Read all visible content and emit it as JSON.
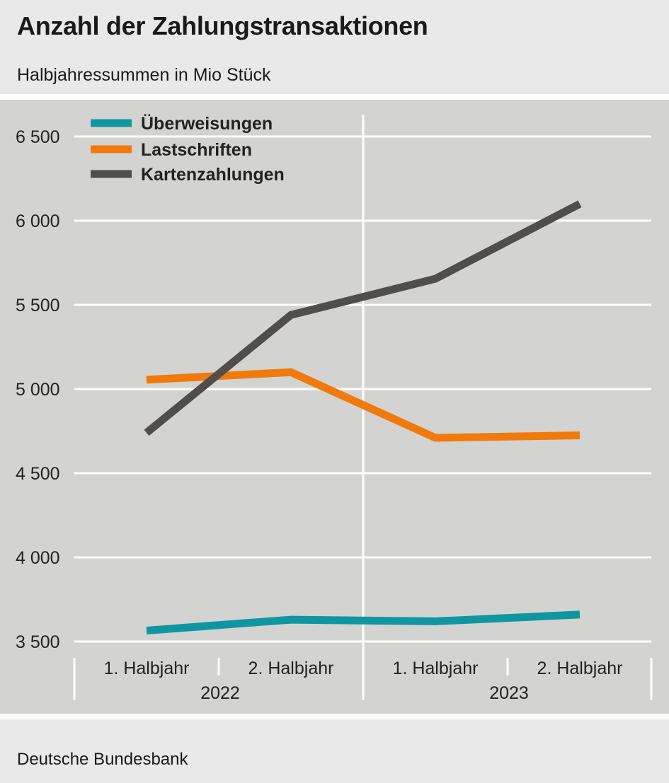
{
  "title": "Anzahl der Zahlungstransaktionen",
  "subtitle": "Halbjahressummen in Mio Stück",
  "source": "Deutsche Bundesbank",
  "chart_data": {
    "type": "line",
    "title": "Anzahl der Zahlungstransaktionen",
    "subtitle": "Halbjahressummen in Mio Stück",
    "categories": [
      "1. Halbjahr",
      "2. Halbjahr",
      "1. Halbjahr",
      "2. Halbjahr"
    ],
    "groups": [
      {
        "label": "2022",
        "categories": [
          "1. Halbjahr",
          "2. Halbjahr"
        ]
      },
      {
        "label": "2023",
        "categories": [
          "1. Halbjahr",
          "2. Halbjahr"
        ]
      }
    ],
    "series": [
      {
        "name": "Überweisungen",
        "color": "#0e97a1",
        "values": [
          3565,
          3630,
          3620,
          3660
        ]
      },
      {
        "name": "Lastschriften",
        "color": "#f07a0c",
        "values": [
          5055,
          5100,
          4710,
          4725
        ]
      },
      {
        "name": "Kartenzahlungen",
        "color": "#504e4d",
        "values": [
          4740,
          5440,
          5655,
          6100
        ]
      }
    ],
    "yticks": [
      3500,
      4000,
      4500,
      5000,
      5500,
      6000,
      6500
    ],
    "ytick_labels": [
      "3 500",
      "4 000",
      "4 500",
      "5 000",
      "5 500",
      "6 000",
      "6 500"
    ],
    "ylim": [
      3500,
      6500
    ],
    "grid": true,
    "legend": "top-left"
  }
}
